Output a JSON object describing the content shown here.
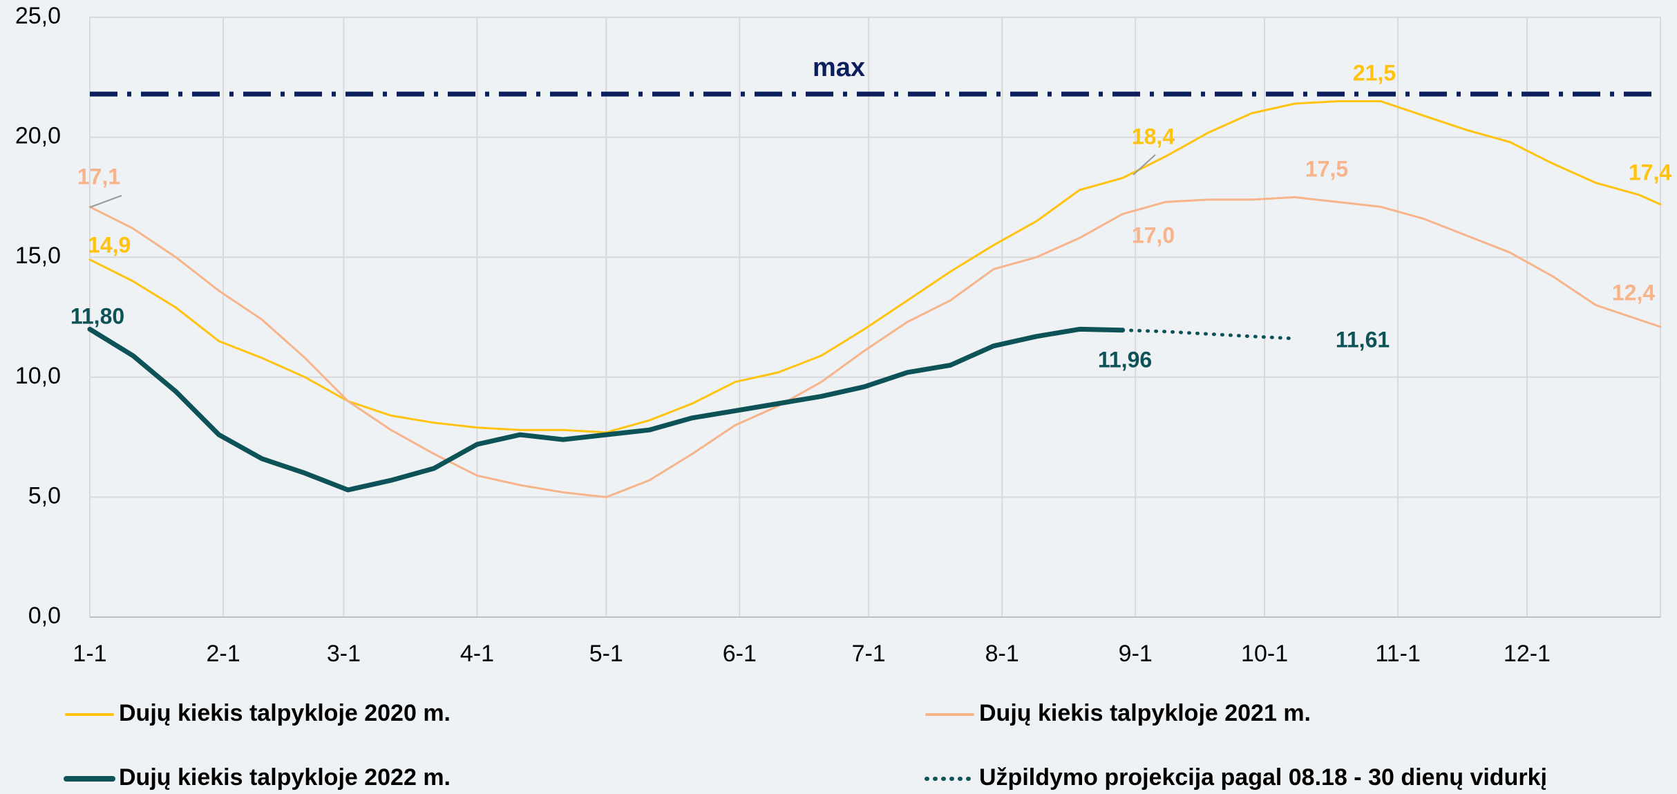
{
  "chart_data": {
    "type": "line",
    "x": [
      1,
      11,
      21,
      31,
      41,
      51,
      61,
      71,
      81,
      91,
      101,
      111,
      121,
      131,
      141,
      151,
      161,
      171,
      181,
      191,
      201,
      211,
      221,
      231,
      241,
      251,
      261,
      271,
      281,
      291,
      301,
      311,
      321,
      331,
      341,
      351,
      361,
      366
    ],
    "series": [
      {
        "name": "Dujų kiekis talpykloje 2020 m.",
        "color": "#ffc20e",
        "style": "solid",
        "values": [
          14.9,
          14.0,
          12.9,
          11.5,
          10.8,
          10.0,
          9.0,
          8.4,
          8.1,
          7.9,
          7.8,
          7.8,
          7.7,
          8.2,
          8.9,
          9.8,
          10.2,
          10.9,
          12.0,
          13.2,
          14.4,
          15.5,
          16.5,
          17.8,
          18.3,
          19.2,
          20.2,
          21.0,
          21.4,
          21.5,
          21.5,
          20.9,
          20.3,
          19.8,
          18.9,
          18.1,
          17.6,
          17.2
        ]
      },
      {
        "name": "Dujų kiekis talpykloje 2021 m.",
        "color": "#f7b48a",
        "style": "solid",
        "values": [
          17.1,
          16.2,
          15.0,
          13.6,
          12.4,
          10.8,
          9.0,
          7.8,
          6.8,
          5.9,
          5.5,
          5.2,
          5.0,
          5.7,
          6.8,
          8.0,
          8.8,
          9.8,
          11.1,
          12.3,
          13.2,
          14.5,
          15.0,
          15.8,
          16.8,
          17.3,
          17.4,
          17.4,
          17.5,
          17.3,
          17.1,
          16.6,
          15.9,
          15.2,
          14.2,
          13.0,
          12.4,
          12.1
        ]
      },
      {
        "name": "Dujų kiekis talpykloje 2022 m.",
        "color": "#0d5257",
        "style": "thick",
        "values": [
          12.0,
          10.9,
          9.4,
          7.6,
          6.6,
          6.0,
          5.3,
          5.7,
          6.2,
          7.2,
          7.6,
          7.4,
          7.6,
          7.8,
          8.3,
          8.6,
          8.9,
          9.2,
          9.6,
          10.2,
          10.5,
          11.3,
          11.7,
          12.0,
          11.96,
          null,
          null,
          null,
          null,
          null,
          null,
          null,
          null,
          null,
          null,
          null,
          null,
          null
        ]
      },
      {
        "name": "Užpildymo projekcija pagal 08.18 - 30 dienų vidurkį",
        "color": "#0d5257",
        "style": "dotted",
        "values": [
          null,
          null,
          null,
          null,
          null,
          null,
          null,
          null,
          null,
          null,
          null,
          null,
          null,
          null,
          null,
          null,
          null,
          null,
          null,
          null,
          null,
          null,
          null,
          null,
          11.96,
          11.9,
          11.8,
          11.7,
          11.61,
          null,
          null,
          null,
          null,
          null,
          null,
          null,
          null,
          null
        ]
      }
    ],
    "xlim": [
      1,
      366
    ],
    "xticks": [
      {
        "value": 1,
        "label": "1-1"
      },
      {
        "value": 32,
        "label": "2-1"
      },
      {
        "value": 60,
        "label": "3-1"
      },
      {
        "value": 91,
        "label": "4-1"
      },
      {
        "value": 121,
        "label": "5-1"
      },
      {
        "value": 152,
        "label": "6-1"
      },
      {
        "value": 182,
        "label": "7-1"
      },
      {
        "value": 213,
        "label": "8-1"
      },
      {
        "value": 244,
        "label": "9-1"
      },
      {
        "value": 274,
        "label": "10-1"
      },
      {
        "value": 305,
        "label": "11-1"
      },
      {
        "value": 335,
        "label": "12-1"
      }
    ],
    "ylim": [
      0,
      25
    ],
    "yticks": [
      {
        "value": 0,
        "label": "0,0"
      },
      {
        "value": 5,
        "label": "5,0"
      },
      {
        "value": 10,
        "label": "10,0"
      },
      {
        "value": 15,
        "label": "15,0"
      },
      {
        "value": 20,
        "label": "20,0"
      },
      {
        "value": 25,
        "label": "25,0"
      }
    ],
    "grid": true,
    "reference_line": {
      "label": "max",
      "value": 21.8,
      "color": "#0b1f5c"
    },
    "annotations": [
      {
        "text": "21,5",
        "color": "#ffc20e"
      },
      {
        "text": "18,4",
        "color": "#ffc20e"
      },
      {
        "text": "14,9",
        "color": "#ffc20e"
      },
      {
        "text": "17,4",
        "color": "#ffc20e"
      },
      {
        "text": "17,1",
        "color": "#f7b48a"
      },
      {
        "text": "17,5",
        "color": "#f7b48a"
      },
      {
        "text": "17,0",
        "color": "#f7b48a"
      },
      {
        "text": "12,4",
        "color": "#f7b48a"
      },
      {
        "text": "11,80",
        "color": "#0d5257"
      },
      {
        "text": "11,96",
        "color": "#0d5257"
      },
      {
        "text": "11,61",
        "color": "#0d5257"
      }
    ]
  }
}
